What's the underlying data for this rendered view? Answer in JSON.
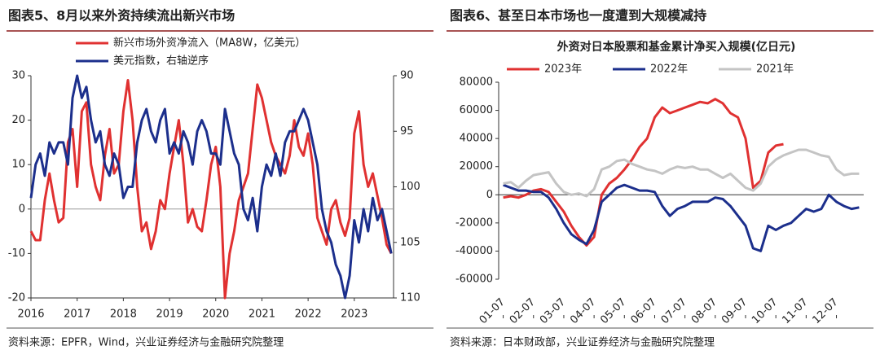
{
  "chart_data": [
    {
      "type": "line",
      "title": "图表5、8月以来外资持续流出新兴市场",
      "source": "资料来源：EPFR，Wind，兴业证券经济与金融研究院整理",
      "legend": "upper-left",
      "xlim": [
        2016,
        2023.85
      ],
      "xticks": [
        2016,
        2017,
        2018,
        2019,
        2020,
        2021,
        2022,
        2023
      ],
      "ylim": [
        -20,
        30
      ],
      "yticks": [
        -20,
        -10,
        0,
        10,
        20,
        30
      ],
      "y2lim": [
        90,
        110
      ],
      "y2ticks": [
        90,
        95,
        100,
        105,
        110
      ],
      "y2_inverted": true,
      "x": [
        2016.0,
        2016.1,
        2016.2,
        2016.3,
        2016.4,
        2016.5,
        2016.6,
        2016.7,
        2016.8,
        2016.9,
        2017.0,
        2017.1,
        2017.2,
        2017.3,
        2017.4,
        2017.5,
        2017.6,
        2017.7,
        2017.8,
        2017.9,
        2018.0,
        2018.1,
        2018.2,
        2018.3,
        2018.4,
        2018.5,
        2018.6,
        2018.7,
        2018.8,
        2018.9,
        2019.0,
        2019.1,
        2019.2,
        2019.3,
        2019.4,
        2019.5,
        2019.6,
        2019.7,
        2019.8,
        2019.9,
        2020.0,
        2020.1,
        2020.2,
        2020.3,
        2020.4,
        2020.5,
        2020.6,
        2020.7,
        2020.8,
        2020.9,
        2021.0,
        2021.1,
        2021.2,
        2021.3,
        2021.4,
        2021.5,
        2021.6,
        2021.7,
        2021.8,
        2021.9,
        2022.0,
        2022.1,
        2022.2,
        2022.3,
        2022.4,
        2022.5,
        2022.6,
        2022.7,
        2022.8,
        2022.9,
        2023.0,
        2023.1,
        2023.2,
        2023.3,
        2023.4,
        2023.5,
        2023.6,
        2023.7,
        2023.8
      ],
      "series": [
        {
          "name": "新兴市场外资净流入（MA8W，亿美元）",
          "color": "#e03131",
          "values": [
            -5,
            -7,
            -7,
            2,
            8,
            2,
            -3,
            -2,
            15,
            18,
            5,
            22,
            24,
            10,
            5,
            2,
            12,
            18,
            8,
            10,
            22,
            29,
            20,
            5,
            -5,
            -3,
            -9,
            -5,
            2,
            0,
            8,
            14,
            20,
            10,
            -3,
            0,
            -4,
            -5,
            2,
            10,
            14,
            5,
            -20,
            -10,
            -5,
            2,
            5,
            8,
            18,
            28,
            25,
            20,
            15,
            12,
            10,
            8,
            12,
            20,
            14,
            12,
            17,
            10,
            -2,
            -5,
            -8,
            0,
            2,
            -3,
            -6,
            -2,
            17,
            22,
            10,
            5,
            8,
            3,
            -2,
            -8,
            -10
          ]
        },
        {
          "name": "美元指数，右轴逆序",
          "color": "#1c2f8c",
          "axis": "y2",
          "values": [
            101,
            98,
            97,
            99,
            96,
            97,
            96,
            96,
            98,
            92,
            90,
            92,
            91,
            94,
            96,
            95,
            98,
            99,
            97,
            98,
            101,
            100,
            100,
            96,
            94,
            93,
            95,
            96,
            94,
            93,
            97,
            96,
            97,
            95,
            96,
            98,
            95,
            94,
            95,
            97,
            97,
            98,
            93,
            95,
            97,
            98,
            102,
            103,
            101,
            104,
            100,
            98,
            99,
            97,
            99,
            96,
            95,
            95,
            94,
            93,
            94,
            96,
            98,
            102,
            104,
            105,
            107,
            108,
            110,
            108,
            103,
            105,
            102,
            104,
            101,
            103,
            102,
            104,
            106
          ]
        }
      ]
    },
    {
      "type": "line",
      "title": "图表6、甚至日本市场也一度遭到大规模减持",
      "subtitle": "外资对日本股票和基金累计净买入规模(亿日元)",
      "source": "资料来源：日本财政部，兴业证券经济与金融研究院整理",
      "legend": "top",
      "xtick_rotation": -45,
      "xlim": [
        0.85,
        12.9
      ],
      "xticks": [
        {
          "value": 1,
          "label": "01-07"
        },
        {
          "value": 2,
          "label": "02-07"
        },
        {
          "value": 3,
          "label": "03-07"
        },
        {
          "value": 4,
          "label": "04-07"
        },
        {
          "value": 5,
          "label": "05-07"
        },
        {
          "value": 6,
          "label": "06-07"
        },
        {
          "value": 7,
          "label": "07-07"
        },
        {
          "value": 8,
          "label": "08-07"
        },
        {
          "value": 9,
          "label": "09-07"
        },
        {
          "value": 10,
          "label": "10-07"
        },
        {
          "value": 11,
          "label": "11-07"
        },
        {
          "value": 12,
          "label": "12-07"
        }
      ],
      "ylim": [
        -60000,
        80000
      ],
      "yticks": [
        -60000,
        -40000,
        -20000,
        0,
        20000,
        40000,
        60000,
        80000
      ],
      "x": [
        1,
        1.25,
        1.5,
        1.75,
        2,
        2.25,
        2.5,
        2.75,
        3,
        3.25,
        3.5,
        3.75,
        4,
        4.25,
        4.5,
        4.75,
        5,
        5.25,
        5.5,
        5.75,
        6,
        6.25,
        6.5,
        6.75,
        7,
        7.25,
        7.5,
        7.75,
        8,
        8.25,
        8.5,
        8.75,
        9,
        9.25,
        9.5,
        9.75,
        10,
        10.25,
        10.5,
        10.75,
        11,
        11.25,
        11.5,
        11.75,
        12,
        12.25,
        12.5,
        12.75
      ],
      "series": [
        {
          "name": "2023年",
          "color": "#e03131",
          "values": [
            -2000,
            -1000,
            -2000,
            0,
            3000,
            4000,
            2000,
            -5000,
            -12000,
            -22000,
            -30000,
            -36000,
            -30000,
            0,
            8000,
            12000,
            18000,
            25000,
            34000,
            40000,
            55000,
            62000,
            58000,
            60000,
            62000,
            64000,
            66000,
            65000,
            68000,
            65000,
            58000,
            55000,
            40000,
            5000,
            10000,
            30000,
            35000,
            36000,
            null,
            null,
            null,
            null,
            null,
            null,
            null,
            null,
            null,
            null
          ]
        },
        {
          "name": "2022年",
          "color": "#1c2f8c",
          "values": [
            7000,
            5000,
            3000,
            3000,
            2000,
            2000,
            -2000,
            -10000,
            -20000,
            -28000,
            -32000,
            -35000,
            -25000,
            -5000,
            0,
            5000,
            7000,
            5000,
            3000,
            3000,
            2000,
            -8000,
            -15000,
            -10000,
            -8000,
            -5000,
            -5000,
            -5000,
            -2000,
            -3000,
            -8000,
            -15000,
            -22000,
            -38000,
            -40000,
            -22000,
            -25000,
            -22000,
            -20000,
            -15000,
            -10000,
            -12000,
            -10000,
            0,
            -5000,
            -8000,
            -10000,
            -9000
          ]
        },
        {
          "name": "2021年",
          "color": "#c4c4c4",
          "values": [
            8000,
            9000,
            5000,
            10000,
            14000,
            15000,
            16000,
            8000,
            2000,
            0,
            1000,
            -1000,
            4000,
            18000,
            20000,
            24000,
            25000,
            22000,
            20000,
            18000,
            17000,
            15000,
            18000,
            20000,
            19000,
            20000,
            18000,
            18000,
            15000,
            12000,
            15000,
            10000,
            5000,
            3000,
            8000,
            20000,
            25000,
            28000,
            30000,
            32000,
            32000,
            30000,
            28000,
            27000,
            18000,
            14000,
            15000,
            15000
          ]
        }
      ]
    }
  ]
}
